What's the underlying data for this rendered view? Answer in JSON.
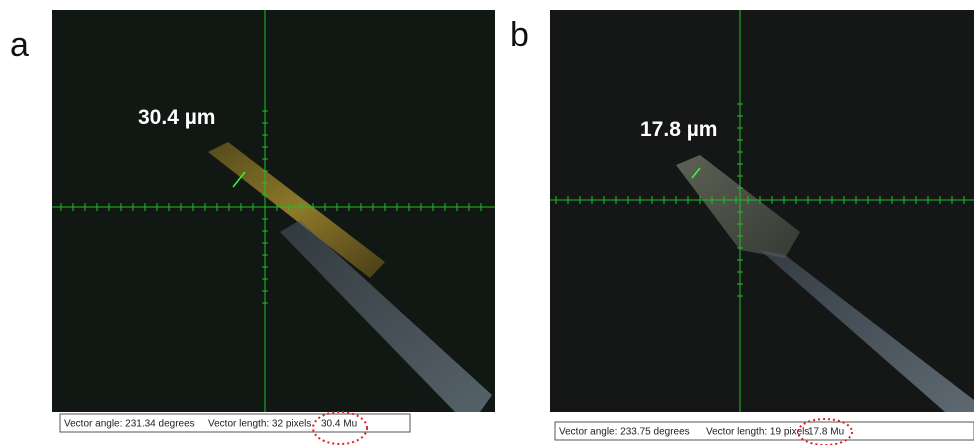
{
  "panels": [
    {
      "label": "a",
      "measurement": "30.4 µm",
      "status": {
        "angle": "Vector angle: 231.34 degrees",
        "length": "Vector length: 32 pixels",
        "value": "30.4 Mu"
      }
    },
    {
      "label": "b",
      "measurement": "17.8 µm",
      "status": {
        "angle": "Vector angle: 233.75 degrees",
        "length": "Vector length: 19 pixels",
        "value": "17.8 Mu"
      }
    }
  ]
}
